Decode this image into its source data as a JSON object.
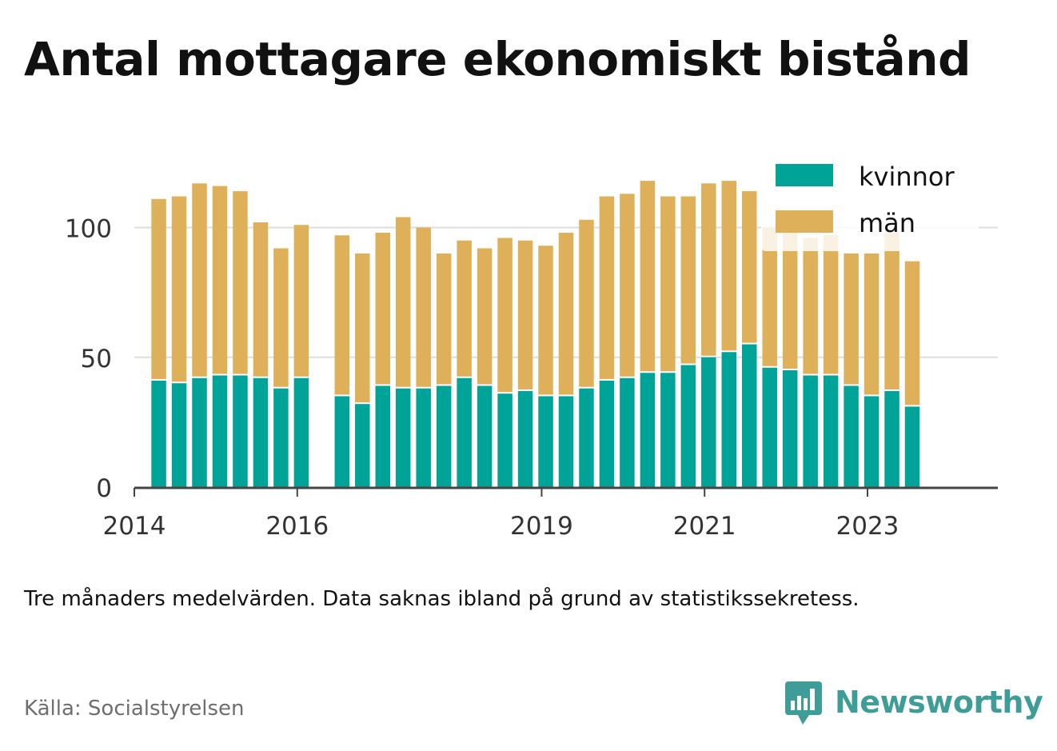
{
  "title": "Antal mottagare ekonomiskt bistånd",
  "note": "Tre månaders medelvärden. Data saknas ibland på grund av statistikssekretess.",
  "source": "Källa: Socialstyrelsen",
  "brand": {
    "name": "Newsworthy",
    "icon": "newsworthy-logo-icon",
    "color": "#3e9d96"
  },
  "colors": {
    "kvinnor": "#00a398",
    "man": "#deb05a",
    "grid": "#dddddd",
    "axis": "#444444"
  },
  "chart_data": {
    "type": "bar",
    "stacked": true,
    "x_start": 2014.3,
    "x_step": 0.25,
    "xlim": [
      2014,
      2024.6
    ],
    "xticks": [
      2014,
      2016,
      2019,
      2021,
      2023
    ],
    "xtick_labels": [
      "2014",
      "2016",
      "2019",
      "2021",
      "2023"
    ],
    "ylim": [
      0,
      128
    ],
    "yticks": [
      0,
      50,
      100
    ],
    "ytick_labels": [
      "0",
      "50",
      "100"
    ],
    "grid": true,
    "legend": "top-right",
    "series": [
      {
        "name": "kvinnor",
        "color": "#00a398",
        "values": [
          41,
          40,
          42,
          43,
          43,
          42,
          38,
          42,
          null,
          35,
          32,
          39,
          38,
          38,
          39,
          42,
          39,
          36,
          37,
          35,
          35,
          38,
          41,
          42,
          44,
          44,
          47,
          50,
          52,
          55,
          46,
          45,
          43,
          43,
          39,
          35,
          37,
          31
        ]
      },
      {
        "name": "män",
        "color": "#deb05a",
        "values": [
          70,
          72,
          75,
          73,
          71,
          60,
          54,
          59,
          null,
          62,
          58,
          59,
          66,
          62,
          51,
          53,
          53,
          60,
          58,
          58,
          63,
          65,
          71,
          71,
          74,
          68,
          65,
          67,
          66,
          59,
          54,
          53,
          53,
          54,
          51,
          55,
          61,
          56
        ]
      }
    ]
  }
}
